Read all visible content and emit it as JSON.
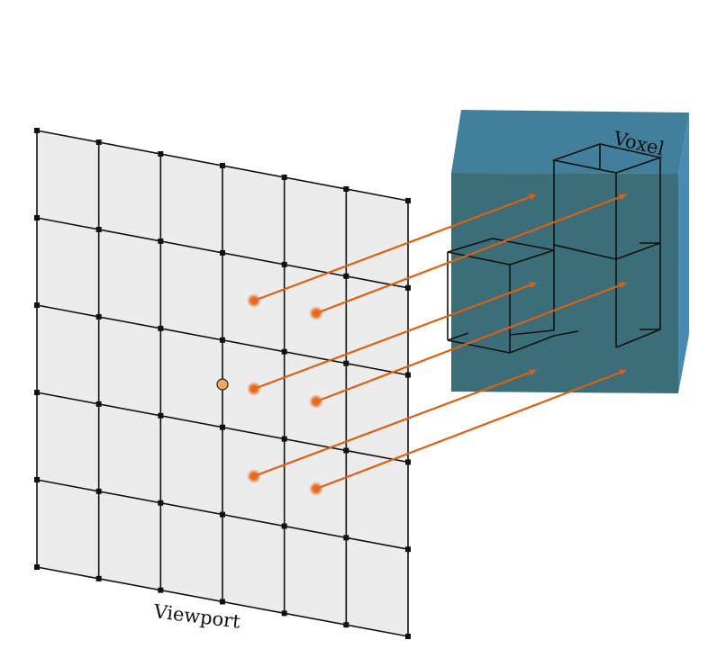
{
  "labels": {
    "viewport": "Viewport",
    "voxel": "Voxel"
  },
  "colors": {
    "viewport_fill": "#ececec",
    "grid_line": "#111111",
    "volume_front": "#3c6e79",
    "volume_top": "#427f9b",
    "volume_side": "#4a8bb3",
    "ray": "#d96116",
    "sample_point": "#e8661a",
    "center_point": "#f0a85a"
  }
}
